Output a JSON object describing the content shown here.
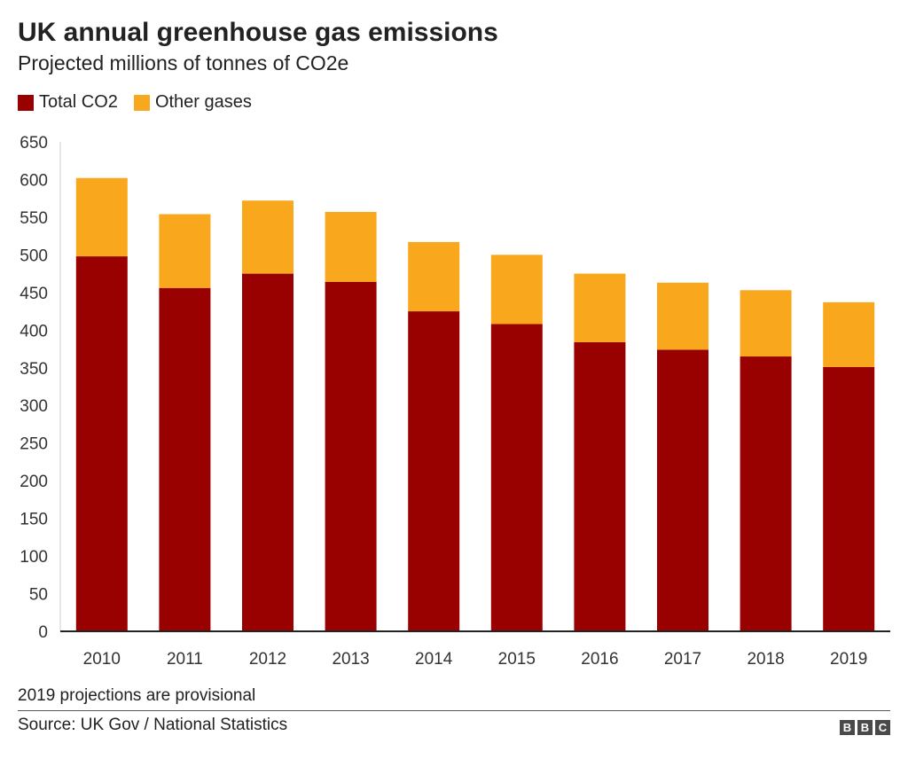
{
  "header": {
    "title": "UK annual greenhouse gas emissions",
    "subtitle": "Projected millions of tonnes of CO2e"
  },
  "legend": {
    "items": [
      {
        "label": "Total CO2",
        "color": "#990000"
      },
      {
        "label": "Other gases",
        "color": "#f9a71c"
      }
    ]
  },
  "footer": {
    "note": "2019 projections are provisional",
    "source": "Source: UK Gov / National Statistics",
    "logo_letters": [
      "B",
      "B",
      "C"
    ]
  },
  "chart_data": {
    "type": "bar",
    "stacked": true,
    "title": "UK annual greenhouse gas emissions",
    "subtitle": "Projected millions of tonnes of CO2e",
    "xlabel": "",
    "ylabel": "",
    "categories": [
      "2010",
      "2011",
      "2012",
      "2013",
      "2014",
      "2015",
      "2016",
      "2017",
      "2018",
      "2019"
    ],
    "series": [
      {
        "name": "Total CO2",
        "color": "#990000",
        "values": [
          498,
          456,
          475,
          464,
          425,
          408,
          384,
          374,
          365,
          351
        ]
      },
      {
        "name": "Other gases",
        "color": "#f9a71c",
        "values": [
          104,
          98,
          97,
          93,
          92,
          92,
          91,
          89,
          88,
          86
        ]
      }
    ],
    "ylim": [
      0,
      650
    ],
    "yticks": [
      0,
      50,
      100,
      150,
      200,
      250,
      300,
      350,
      400,
      450,
      500,
      550,
      600,
      650
    ],
    "grid": false,
    "legend_position": "top-left"
  }
}
